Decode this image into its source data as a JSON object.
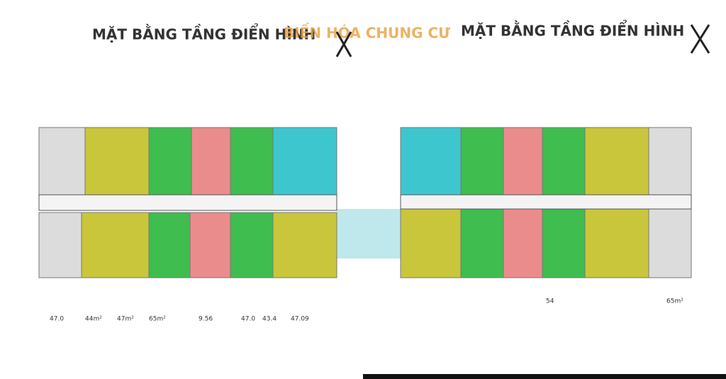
{
  "header": {
    "title_left": "MẶT BẰNG TẦNG ĐIỂN HÌNH",
    "overlay": "BIẾN HÓA CHUNG CƯ",
    "title_right": "MẶT BẰNG TẦNG ĐIỂN HÌNH"
  },
  "plans": [
    {
      "areas": [
        "47.0",
        "44m²",
        "47m²",
        "65m²",
        "9.56",
        "47.0",
        "43.4",
        "47.09"
      ]
    },
    {
      "areas": [
        "54",
        "65m²"
      ]
    }
  ]
}
